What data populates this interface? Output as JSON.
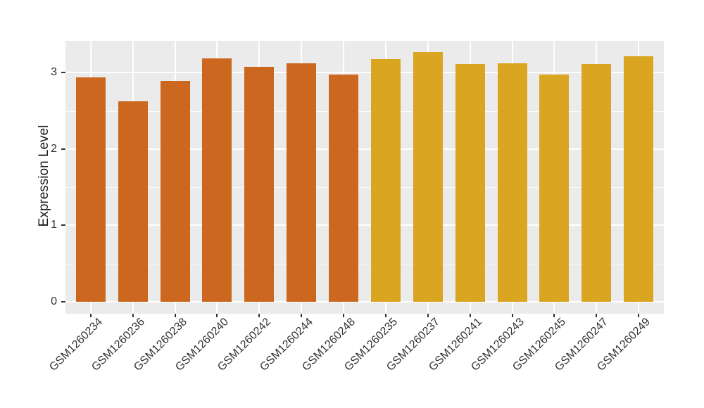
{
  "chart_data": {
    "type": "bar",
    "title": "",
    "xlabel": "",
    "ylabel": "Expression Level",
    "categories": [
      "GSM1260234",
      "GSM1260236",
      "GSM1260238",
      "GSM1260240",
      "GSM1260242",
      "GSM1260244",
      "GSM1260248",
      "GSM1260235",
      "GSM1260237",
      "GSM1260241",
      "GSM1260243",
      "GSM1260245",
      "GSM1260247",
      "GSM1260249"
    ],
    "values": [
      2.94,
      2.62,
      2.89,
      3.19,
      3.08,
      3.12,
      2.97,
      3.18,
      3.27,
      3.11,
      3.12,
      2.97,
      3.11,
      3.21
    ],
    "bar_groups": [
      "orange",
      "orange",
      "orange",
      "orange",
      "orange",
      "orange",
      "orange",
      "gold",
      "gold",
      "gold",
      "gold",
      "gold",
      "gold",
      "gold"
    ],
    "group_colors": {
      "orange": "#CB671E",
      "gold": "#DAA520"
    },
    "yticks": [
      0,
      1,
      2,
      3
    ],
    "minor_ticks": [
      0.5,
      1.5,
      2.5
    ],
    "ylim": [
      0,
      3.42
    ],
    "grid": true,
    "legend": "none",
    "x_label_angle_deg": 45,
    "panel_background": "#EBEBEB",
    "grid_color": "#FFFFFF",
    "axis_text_color": "#333333"
  }
}
